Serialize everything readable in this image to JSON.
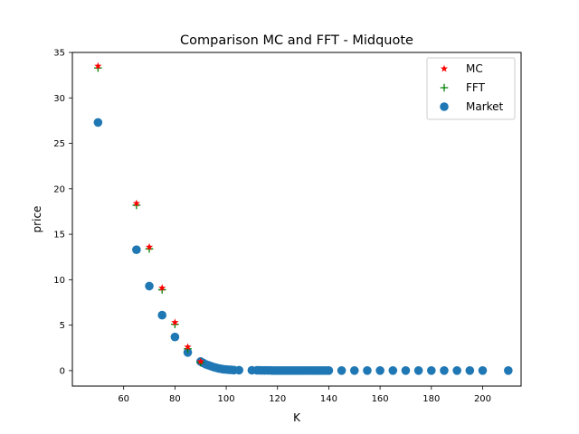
{
  "chart_data": {
    "type": "scatter",
    "title": "Comparison MC and FFT - Midquote",
    "xlabel": "K",
    "ylabel": "price",
    "xlim": [
      40,
      215
    ],
    "ylim": [
      -1.7,
      35
    ],
    "xticks": [
      60,
      80,
      100,
      120,
      140,
      160,
      180,
      200
    ],
    "yticks": [
      0,
      5,
      10,
      15,
      20,
      25,
      30,
      35
    ],
    "grid": false,
    "legend_position": "top-right",
    "series": [
      {
        "name": "MC",
        "marker": "star",
        "color": "#ff0000",
        "x": [
          50,
          65,
          70,
          75,
          80,
          85,
          90
        ],
        "y": [
          33.5,
          18.4,
          13.6,
          9.1,
          5.3,
          2.6,
          1.0
        ]
      },
      {
        "name": "FFT",
        "marker": "plus",
        "color": "#008000",
        "x": [
          50,
          65,
          70,
          75,
          80,
          85,
          90
        ],
        "y": [
          33.3,
          18.2,
          13.4,
          8.9,
          5.1,
          2.4,
          0.9
        ]
      },
      {
        "name": "Market",
        "marker": "circle",
        "color": "#1f77b4",
        "x": [
          50,
          65,
          70,
          75,
          80,
          85,
          90,
          91,
          92,
          93,
          94,
          95,
          96,
          97,
          98,
          99,
          100,
          101,
          102,
          103,
          105,
          110,
          112,
          113,
          114,
          115,
          116,
          117,
          118,
          119,
          120,
          121,
          122,
          123,
          124,
          125,
          126,
          127,
          128,
          129,
          130,
          131,
          132,
          133,
          134,
          135,
          136,
          137,
          138,
          139,
          140,
          145,
          150,
          155,
          160,
          165,
          170,
          175,
          180,
          185,
          190,
          195,
          200,
          210
        ],
        "y": [
          27.3,
          13.3,
          9.3,
          6.1,
          3.7,
          2.0,
          1.0,
          0.85,
          0.7,
          0.6,
          0.5,
          0.4,
          0.32,
          0.25,
          0.2,
          0.15,
          0.12,
          0.1,
          0.08,
          0.06,
          0.05,
          0.04,
          0.03,
          0.03,
          0.02,
          0.02,
          0.02,
          0.02,
          0.01,
          0.01,
          0.01,
          0.01,
          0.01,
          0.01,
          0.01,
          0.01,
          0.01,
          0.01,
          0.01,
          0.01,
          0.01,
          0.01,
          0.01,
          0.01,
          0.01,
          0.01,
          0.01,
          0.01,
          0.01,
          0.01,
          0.01,
          0.01,
          0.01,
          0.01,
          0.01,
          0.01,
          0.01,
          0.01,
          0.01,
          0.01,
          0.01,
          0.01,
          0.01,
          0.01
        ]
      }
    ]
  }
}
